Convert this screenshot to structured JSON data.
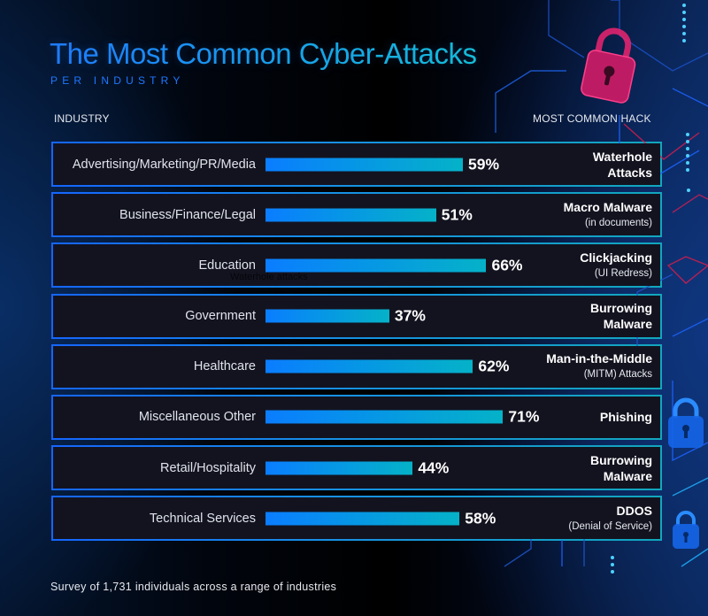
{
  "header": {
    "title": "The Most Common Cyber-Attacks",
    "subtitle": "PER INDUSTRY"
  },
  "columns": {
    "industry": "INDUSTRY",
    "hack": "MOST COMMON HACK"
  },
  "colors": {
    "bar_start": "#0a7dff",
    "bar_end": "#05b2c8",
    "title_blue": "#1f7bff",
    "lock_pink": "#e0246e",
    "background": "#000000"
  },
  "rows": [
    {
      "industry": "Advertising/Marketing/PR/Media",
      "value": 59,
      "pct": "59%",
      "hack_main": "Waterhole",
      "hack_sub": "Attacks",
      "hack_sub_bold": true
    },
    {
      "industry": "Business/Finance/Legal",
      "value": 51,
      "pct": "51%",
      "hack_main": "Macro Malware",
      "hack_sub": "(in documents)",
      "hack_sub_bold": false
    },
    {
      "industry": "Education",
      "value": 66,
      "pct": "66%",
      "hack_main": "Clickjacking",
      "hack_sub": "(UI Redress)",
      "hack_sub_bold": false,
      "overlay_note": "Waterhole attacks"
    },
    {
      "industry": "Government",
      "value": 37,
      "pct": "37%",
      "hack_main": "Burrowing",
      "hack_sub": "Malware",
      "hack_sub_bold": true
    },
    {
      "industry": "Healthcare",
      "value": 62,
      "pct": "62%",
      "hack_main": "Man-in-the-Middle",
      "hack_sub": "(MITM) Attacks",
      "hack_sub_bold": false
    },
    {
      "industry": "Miscellaneous Other",
      "value": 71,
      "pct": "71%",
      "hack_main": "Phishing",
      "hack_sub": "",
      "hack_sub_bold": false
    },
    {
      "industry": "Retail/Hospitality",
      "value": 44,
      "pct": "44%",
      "hack_main": "Burrowing",
      "hack_sub": "Malware",
      "hack_sub_bold": true
    },
    {
      "industry": "Technical Services",
      "value": 58,
      "pct": "58%",
      "hack_main": "DDOS",
      "hack_sub": "(Denial of Service)",
      "hack_sub_bold": false
    }
  ],
  "footnote": "Survey of 1,731 individuals across a range of industries",
  "icons": [
    "padlock-icon-pink",
    "padlock-icon-blue",
    "circuit-lines-decoration"
  ],
  "chart_data": {
    "type": "bar",
    "orientation": "horizontal",
    "title": "The Most Common Cyber-Attacks",
    "subtitle": "PER INDUSTRY",
    "xlabel": "",
    "ylabel": "INDUSTRY",
    "categories": [
      "Advertising/Marketing/PR/Media",
      "Business/Finance/Legal",
      "Education",
      "Government",
      "Healthcare",
      "Miscellaneous Other",
      "Retail/Hospitality",
      "Technical Services"
    ],
    "values": [
      59,
      51,
      66,
      37,
      62,
      71,
      44,
      58
    ],
    "unit": "%",
    "annotations": [
      "Waterhole Attacks",
      "Macro Malware (in documents)",
      "Clickjacking (UI Redress)",
      "Burrowing Malware",
      "Man-in-the-Middle (MITM) Attacks",
      "Phishing",
      "Burrowing Malware",
      "DDOS (Denial of Service)"
    ],
    "annotation_column_label": "MOST COMMON HACK",
    "xlim": [
      0,
      100
    ],
    "grid": false,
    "legend": "none",
    "note": "Survey of 1,731 individuals across a range of industries"
  }
}
